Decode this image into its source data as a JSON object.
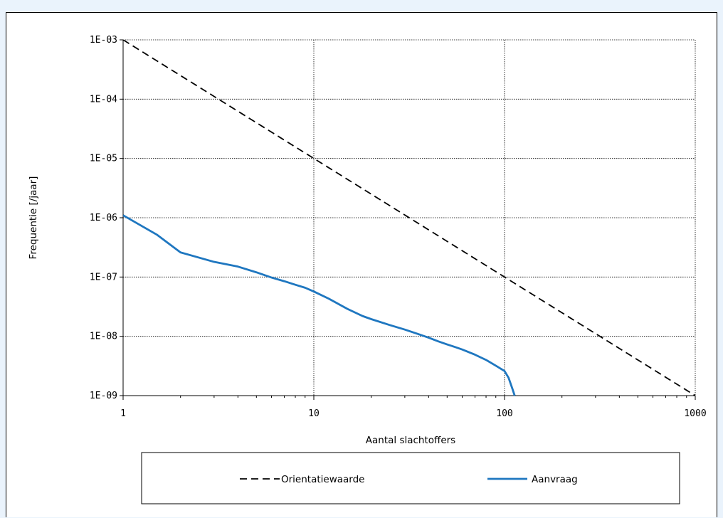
{
  "chart_data": {
    "type": "line",
    "title": "",
    "xlabel": "Aantal slachtoffers",
    "ylabel": "Frequentie [/jaar]",
    "x_scale": "log",
    "y_scale": "log",
    "xlim": [
      1,
      1000
    ],
    "ylim": [
      1e-09,
      0.001
    ],
    "x_ticks": [
      1,
      10,
      100,
      1000
    ],
    "x_tick_labels": [
      "1",
      "10",
      "100",
      "1000"
    ],
    "y_ticks": [
      0.001,
      0.0001,
      1e-05,
      1e-06,
      1e-07,
      1e-08,
      1e-09
    ],
    "y_tick_labels": [
      "1E-03",
      "1E-04",
      "1E-05",
      "1E-06",
      "1E-07",
      "1E-08",
      "1E-09"
    ],
    "grid": true,
    "legend_position": "bottom",
    "series": [
      {
        "name": "Orientatiewaarde",
        "color": "#000000",
        "style": "dashed",
        "x": [
          1,
          1000
        ],
        "y": [
          0.001,
          1e-09
        ]
      },
      {
        "name": "Aanvraag",
        "color": "#1f77c0",
        "style": "solid",
        "x": [
          1,
          1.5,
          2,
          3,
          4,
          5,
          6,
          7,
          8,
          9,
          10,
          12,
          15,
          18,
          20,
          25,
          30,
          35,
          40,
          45,
          50,
          55,
          60,
          70,
          80,
          90,
          100,
          105,
          110,
          113
        ],
        "y": [
          1.1e-06,
          5.2e-07,
          2.6e-07,
          1.8e-07,
          1.5e-07,
          1.2e-07,
          9.8e-08,
          8.5e-08,
          7.4e-08,
          6.6e-08,
          5.7e-08,
          4.3e-08,
          2.9e-08,
          2.2e-08,
          1.95e-08,
          1.55e-08,
          1.3e-08,
          1.1e-08,
          9.5e-09,
          8.2e-09,
          7.3e-09,
          6.6e-09,
          6e-09,
          4.9e-09,
          4e-09,
          3.2e-09,
          2.6e-09,
          2e-09,
          1.3e-09,
          1e-09
        ]
      }
    ]
  }
}
